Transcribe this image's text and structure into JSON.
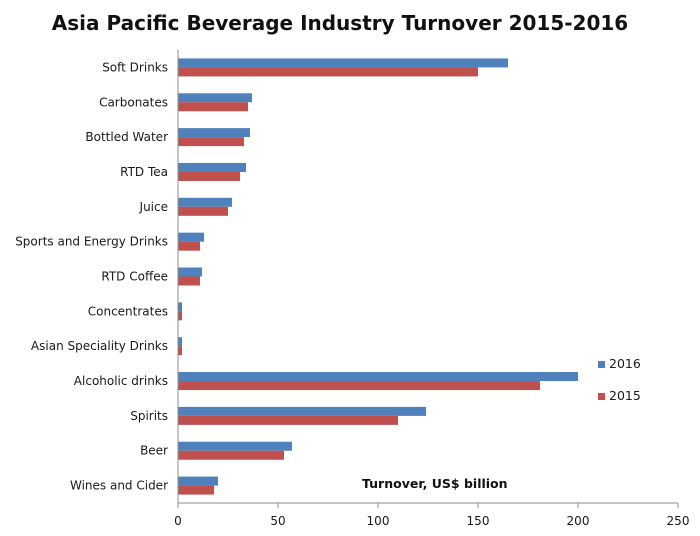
{
  "chart_data": {
    "type": "bar",
    "orientation": "horizontal",
    "title": "Asia Pacific Beverage Industry Turnover 2015-2016",
    "xlabel": "Turnover, US$ billion",
    "ylabel": "",
    "xlim": [
      0,
      250
    ],
    "xticks": [
      0,
      50,
      100,
      150,
      200,
      250
    ],
    "grid": false,
    "legend_position": "right",
    "categories": [
      "Soft Drinks",
      "Carbonates",
      "Bottled Water",
      "RTD Tea",
      "Juice",
      "Sports and Energy Drinks",
      "RTD Coffee",
      "Concentrates",
      "Asian Speciality Drinks",
      "Alcoholic drinks",
      "Spirits",
      "Beer",
      "Wines and Cider"
    ],
    "series": [
      {
        "name": "2016",
        "color": "#4f81bd",
        "values": [
          165,
          37,
          36,
          34,
          27,
          13,
          12,
          2,
          2,
          200,
          124,
          57,
          20
        ]
      },
      {
        "name": "2015",
        "color": "#c0504d",
        "values": [
          150,
          35,
          33,
          31,
          25,
          11,
          11,
          2,
          2,
          181,
          110,
          53,
          18
        ]
      }
    ]
  }
}
